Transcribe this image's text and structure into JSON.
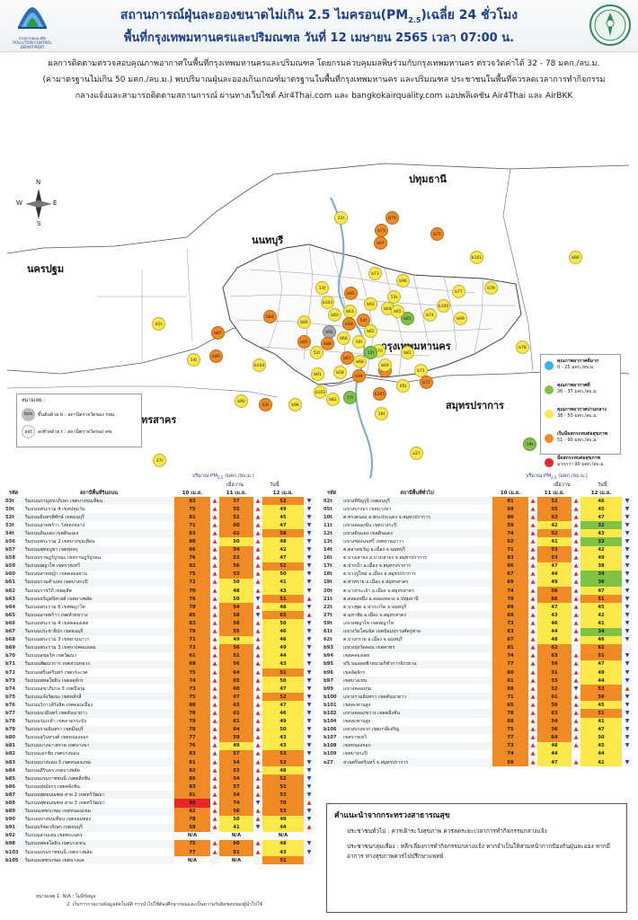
{
  "header": {
    "org_logo_caption": "กรมควบคุมมลพิษ",
    "org_logo_caption_en": "POLLUTION CONTROL DEPARTMENT",
    "title_pre": "สถานการณ์ฝุ่นละอองขนาดไม่เกิน 2.5 ไมครอน(PM",
    "title_sub": "2.5",
    "title_post": ")เฉลี่ย 24 ชั่วโมง",
    "subtitle": "พื้นที่กรุงเทพมหานครและปริมณฑล วันที่ 12 เมษายน 2565 เวลา 07:00 น."
  },
  "intro": {
    "line1": "ผลการติดตามตรวจสอบคุณภาพอากาศในพื้นที่กรุงเทพมหานครและปริมณฑล โดยกรมควบคุมมลพิษร่วมกับกรุงเทพมหานคร ตรวจวัดค่าได้ 32 - 78 มคก./ลบ.ม.",
    "line2": "(ค่ามาตรฐานไม่เกิน 50 มคก./ลบ.ม.) พบปริมาณฝุ่นละอองเกินเกณฑ์มาตรฐานในพื้นที่กรุงเทพมหานคร และปริมณฑล ประชาชนในพื้นที่ควรลดเวลาการทำกิจกรรม",
    "line3": "กลางแจ้งและสามารถติดตามสถานการณ์ ผ่านทางเว็บไซต์ Air4Thai.com และ bangkokairquality.com แอปพลิเคชัน Air4Thai และ AirBKK"
  },
  "map": {
    "compass": {
      "n": "N",
      "e": "E",
      "s": "S",
      "w": "W"
    },
    "provinces": [
      {
        "key": "pathum",
        "label": "ปทุมธานี"
      },
      {
        "key": "nonthaburi",
        "label": "นนทบุรี"
      },
      {
        "key": "nakhonpathom",
        "label": "นครปฐม"
      },
      {
        "key": "bangkok",
        "label": "กรุงเทพมหานคร"
      },
      {
        "key": "samutsakhon",
        "label": "สมุทรสาคร"
      },
      {
        "key": "samutprakan",
        "label": "สมุทรปราการ"
      }
    ],
    "stations": [
      {
        "id": "22t",
        "c": "y"
      },
      {
        "id": "b76",
        "c": "o"
      },
      {
        "id": "b73",
        "c": "o"
      },
      {
        "id": "b97",
        "c": "o"
      },
      {
        "id": "b75",
        "c": "o"
      },
      {
        "id": "b101",
        "c": "y"
      },
      {
        "id": "b80",
        "c": "y"
      },
      {
        "id": "b73",
        "c": "y"
      },
      {
        "id": "b96",
        "c": "y"
      },
      {
        "id": "13t",
        "c": "y"
      },
      {
        "id": "b95",
        "c": "o"
      },
      {
        "id": "53t",
        "c": "y"
      },
      {
        "id": "b77",
        "c": "y"
      },
      {
        "id": "b79",
        "c": "y"
      },
      {
        "id": "b84",
        "c": "o"
      },
      {
        "id": "b103",
        "c": "y"
      },
      {
        "id": "b93",
        "c": "y"
      },
      {
        "id": "b63",
        "c": "y"
      },
      {
        "id": "b64",
        "c": "y"
      },
      {
        "id": "b100",
        "c": "y"
      },
      {
        "id": "b61",
        "c": "g"
      },
      {
        "id": "b65",
        "c": "y"
      },
      {
        "id": "81t",
        "c": "y"
      },
      {
        "id": "b87",
        "c": "o"
      },
      {
        "id": "b60",
        "c": "y"
      },
      {
        "id": "b59",
        "c": "o"
      },
      {
        "id": "54t",
        "c": "o"
      },
      {
        "id": "b99",
        "c": "y"
      },
      {
        "id": "b86",
        "c": "y"
      },
      {
        "id": "b92",
        "c": "x"
      },
      {
        "id": "b62",
        "c": "y"
      },
      {
        "id": "b66",
        "c": "y"
      },
      {
        "id": "50t",
        "c": "y"
      },
      {
        "id": "b74",
        "c": "y"
      },
      {
        "id": "b78",
        "c": "y"
      },
      {
        "id": "b89",
        "c": "o"
      },
      {
        "id": "14t",
        "c": "y"
      },
      {
        "id": "b85",
        "c": "o"
      },
      {
        "id": "b88",
        "c": "o"
      },
      {
        "id": "52t",
        "c": "y"
      },
      {
        "id": "b67",
        "c": "o"
      },
      {
        "id": "b68",
        "c": "y"
      },
      {
        "id": "b70",
        "c": "y"
      },
      {
        "id": "12t",
        "c": "g"
      },
      {
        "id": "b81",
        "c": "y"
      },
      {
        "id": "b104",
        "c": "y"
      },
      {
        "id": "b83",
        "c": "o"
      },
      {
        "id": "b69",
        "c": "y"
      },
      {
        "id": "b58",
        "c": "y"
      },
      {
        "id": "b91",
        "c": "y"
      },
      {
        "id": "b94",
        "c": "o"
      },
      {
        "id": "b71",
        "c": "y"
      },
      {
        "id": "b72",
        "c": "o"
      },
      {
        "id": "05t",
        "c": "y"
      },
      {
        "id": "b102",
        "c": "y"
      },
      {
        "id": "b105",
        "c": "o"
      },
      {
        "id": "b82",
        "c": "y"
      },
      {
        "id": "17t",
        "c": "g"
      },
      {
        "id": "b90",
        "c": "y"
      },
      {
        "id": "03t",
        "c": "o"
      },
      {
        "id": "b98",
        "c": "y"
      },
      {
        "id": "16t",
        "c": "y"
      },
      {
        "id": "27t",
        "c": "y"
      },
      {
        "id": "19t",
        "c": "g"
      },
      {
        "id": "o27",
        "c": "y"
      }
    ],
    "legend": [
      {
        "title": "คุณภาพอากาศดีมาก",
        "range": "0 - 25 มคก./ลบ.ม.",
        "color": "#34b4ee"
      },
      {
        "title": "คุณภาพอากาศดี",
        "range": "26 - 37 มคก./ลบ.ม.",
        "color": "#80c243"
      },
      {
        "title": "คุณภาพอากาศปานกลาง",
        "range": "38 - 50 มคก./ลบ.ม.",
        "color": "#fde84a"
      },
      {
        "title": "เริ่มมีผลกระทบต่อสุขภาพ",
        "range": "51 - 90 มคก./ลบ.ม.",
        "color": "#f08a24"
      },
      {
        "title": "มีผลกระทบต่อสุขภาพ",
        "range": "มากกว่า 90 มคก./ลบ.ม.",
        "color": "#e8262a"
      }
    ],
    "note": {
      "title": "หมายเหตุ :",
      "row1_code": "bxx",
      "row1_text": "ขึ้นต้นด้วย b : สถานีตรวจวัดของ กทม.",
      "row2_code": "xxt",
      "row2_text": "ลงท้ายด้วย t : สถานีตรวจวัดของ คพ."
    }
  },
  "table_head": {
    "unit": "ปริมาณ PM",
    "unit_sub": "2.5",
    "unit_post": " (มคก./ลบ.ม.)",
    "yesterday": "เมื่อวาน",
    "today": "วันนี้",
    "code": "รหัส",
    "station_left": "สถานีพื้นที่ริมถนน",
    "station_right": "สถานีพื้นที่ทั่วไป",
    "d1": "10 เม.ย.",
    "d2": "11 เม.ย.",
    "d3": "12 เม.ย."
  },
  "left_rows": [
    [
      "03t",
      "ริมถนนกาญจนาภิเษก เขตบางขุนเทียน",
      "83",
      "57",
      "52"
    ],
    [
      "50t",
      "ริมถนนพระราม 4 เขตปทุมวัน",
      "75",
      "55",
      "49"
    ],
    [
      "52t",
      "ริมถนนอินทรพิทักษ์ เขตธนบุรี",
      "81",
      "52",
      "45"
    ],
    [
      "53t",
      "ริมถนนลาดพร้าว วังทองหลาง",
      "71",
      "60",
      "47"
    ],
    [
      "54t",
      "ริมถนนดินแดง เขตดินแดง",
      "83",
      "62",
      "58"
    ],
    [
      "b56",
      "ริมถนนพระราม 2 เขตบางขุนเทียน",
      "80",
      "50",
      "48"
    ],
    [
      "b57",
      "ริมถนนพุทธบูชา เขตทุ่งครุ",
      "66",
      "54",
      "42"
    ],
    [
      "b58",
      "ริมถนนราษฎร์บูรณะ เขตราษฎร์บูรณะ",
      "76",
      "53",
      "47"
    ],
    [
      "b59",
      "ริมถนนพญาไท เขตราชเทวี",
      "82",
      "56",
      "52"
    ],
    [
      "b60",
      "ริมถนนลาดหญ้า เขตคลองสาน",
      "75",
      "53",
      "50"
    ],
    [
      "b61",
      "ริมถนนรามคำแหง เขตบางกะปิ",
      "72",
      "50",
      "41"
    ],
    [
      "b62",
      "ริมถนนราชวิถี เขตดุสิต",
      "70",
      "48",
      "43"
    ],
    [
      "b63",
      "ริมถนนจรัญสนิทวงศ์ เขตบางพลัด",
      "76",
      "50",
      "51"
    ],
    [
      "b64",
      "ริมถนนพระราม 6 เขตพญาไท",
      "79",
      "54",
      "48"
    ],
    [
      "b65",
      "ริมถนนลาดพร้าว เขตห้วยขวาง",
      "85",
      "58",
      "65"
    ],
    [
      "b66",
      "ริมถนนพระราม 4 เขตคลองเตย",
      "83",
      "58",
      "50"
    ],
    [
      "b67",
      "ริมถนนประชาธิปก เขตธนบุรี",
      "79",
      "55",
      "46"
    ],
    [
      "b68",
      "ริมถนนพระราม 3 เขตยานนาวา",
      "71",
      "49",
      "46"
    ],
    [
      "b69",
      "ริมถนนพระราม 3 เขตบางคอแหลม",
      "73",
      "56",
      "49"
    ],
    [
      "b70",
      "ริมถนนสุขุมวิท เขตวัฒนา",
      "61",
      "51",
      "44"
    ],
    [
      "b71",
      "ริมถนนพัฒนาการ เขตสวนหลวง",
      "68",
      "56",
      "43"
    ],
    [
      "b72",
      "ริมถนนศรีนครินทร์ เขตประเวศ",
      "75",
      "64",
      "51"
    ],
    [
      "b73",
      "ริมถนนพหลโยธิน เขตจตุจักร",
      "74",
      "65",
      "50"
    ],
    [
      "b74",
      "ริมถนนสุขาภิบาล 3 เขตบึงกุ่ม",
      "73",
      "60",
      "47"
    ],
    [
      "b75",
      "ริมถนนแจ้งวัฒนะ เขตหลักสี่",
      "75",
      "67",
      "52"
    ],
    [
      "b76",
      "ริมถนนวิภาวดีรังสิต เขตดอนเมือง",
      "80",
      "63",
      "47"
    ],
    [
      "b77",
      "ริมถนนนวมินทร์ เขตคันนายาว",
      "78",
      "62",
      "46"
    ],
    [
      "b78",
      "ริมถนนร่มเกล้า เขตลาดกระบัง",
      "79",
      "61",
      "49"
    ],
    [
      "b79",
      "ริมถนนรามอินทรา เขตมีนบุรี",
      "78",
      "64",
      "50"
    ],
    [
      "b80",
      "ริมถนนสุวินทวงศ์ เขตหนองจอก",
      "77",
      "59",
      "43"
    ],
    [
      "b81",
      "ริมถนนบางนา-ตราด เขตบางนา",
      "76",
      "49",
      "43"
    ],
    [
      "b82",
      "ริมถนนเอกชัย เขตบางบอน",
      "83",
      "57",
      "53"
    ],
    [
      "b83",
      "ริมถนนบางบอน 3 เขตหนองแขม",
      "81",
      "54",
      "53"
    ],
    [
      "b84",
      "ริมถนนสิรินธร เขตบางพลัด",
      "82",
      "53",
      "48"
    ],
    [
      "b85",
      "ริมถนนบรมราชชนนี เขตตลิ่งชัน",
      "86",
      "54",
      "52"
    ],
    [
      "b86",
      "ริมถนนทุ่งมังกร เขตตลิ่งชัน",
      "83",
      "57",
      "51"
    ],
    [
      "b87",
      "ริมถนนพุทธมณฑล สาย 2 เขตทวีวัฒนา",
      "81",
      "54",
      "53"
    ],
    [
      "b88",
      "ริมถนนพุทธมณฑล สาย 3 เขตทวีวัฒนา",
      "99",
      "74",
      "78"
    ],
    [
      "b89",
      "ริมถนนเพชรเกษม เขตหนองแขม",
      "82",
      "56",
      "53"
    ],
    [
      "b90",
      "ริมถนนบางขุนเทียน เขตจอมทอง",
      "78",
      "50",
      "49"
    ],
    [
      "b91",
      "ริมถนนรัชดาภิเษก เขตธนบุรี",
      "59",
      "41",
      "44"
    ],
    [
      "b92",
      "ริมถนนสามเสน เขตพระนคร",
      "N/A",
      "N/A",
      "N/A"
    ],
    [
      "b98",
      "ริมถนนพหลโยธิน เขตบางเขน",
      "75",
      "60",
      "48"
    ],
    [
      "b103",
      "ริมถนนบรมราชชนนี เขตบางพลัด",
      "77",
      "51",
      "43"
    ],
    [
      "b105",
      "ริมถนนเพชรเกษม เขตบางแค",
      "N/A",
      "N/A",
      "51"
    ]
  ],
  "right_rows": [
    [
      "02t",
      "แขวงหิรัญรูจี เขตธนบุรี",
      "81",
      "52",
      "46"
    ],
    [
      "05t",
      "แขวงบางนา เขตบางนา",
      "69",
      "55",
      "45"
    ],
    [
      "10t",
      "ต.ทรงคนอง อ.พระประแดง จ.สมุทรปราการ",
      "80",
      "53",
      "47"
    ],
    [
      "11t",
      "แขวงคลองจั่น เขตบางกะปิ",
      "59",
      "42",
      "32"
    ],
    [
      "12t",
      "แขวงดินแดง เขตดินแดง",
      "74",
      "52",
      "43"
    ],
    [
      "13t",
      "แขวงช่องนนทรี เขตยานนาวา",
      "62",
      "41",
      "33"
    ],
    [
      "14t",
      "ต.ตลาดขวัญ อ.เมือง จ.นนทบุรี",
      "71",
      "53",
      "42"
    ],
    [
      "16t",
      "ต.บางเสาธง อ.บางเสาธง จ.สมุทรปราการ",
      "83",
      "53",
      "49"
    ],
    [
      "17t",
      "ต.ปากน้ำ อ.เมือง จ.สมุทรปราการ",
      "66",
      "47",
      "38"
    ],
    [
      "18t",
      "ต.บางปูใหม่ อ.เมือง จ.สมุทรปราการ",
      "67",
      "44",
      "34"
    ],
    [
      "19t",
      "ต.ท่าทราย อ.เมือง จ.สมุทรสาคร",
      "69",
      "49",
      "36"
    ],
    [
      "20t",
      "ต.บางกระเจ้า อ.เมือง จ.สมุทรสาคร",
      "74",
      "56",
      "47"
    ],
    [
      "21t",
      "ต.คลองหนึ่ง อ.คลองหลวง จ.ปทุมธานี",
      "79",
      "66",
      "51"
    ],
    [
      "22t",
      "ต.บางพูด อ.ปากเกร็ด จ.นนทบุรี",
      "69",
      "47",
      "45"
    ],
    [
      "27t",
      "ต.มหาชัย อ.เมือง จ.สมุทรสาคร",
      "69",
      "43",
      "42"
    ],
    [
      "59t",
      "แขวงพญาไท เขตพญาไท",
      "73",
      "46",
      "41"
    ],
    [
      "61t",
      "แขวงวัดโสมนัส เขตป้อมปราบศัตรูพ่าย",
      "63",
      "44",
      "34"
    ],
    [
      "62t",
      "ต.บางกรวย อ.เมือง จ.นนทบุรี",
      "67",
      "48",
      "46"
    ],
    [
      "b93",
      "แขวงทุ่งวัดดอน เขตสาทร",
      "81",
      "62",
      "62"
    ],
    [
      "b94",
      "เขตคลองเตย",
      "74",
      "63",
      "51"
    ],
    [
      "b95",
      "บริเวณลอยฟ้าสนามกีฬาการจักรยาน",
      "77",
      "59",
      "47"
    ],
    [
      "b96",
      "เขตจัตุจักร",
      "60",
      "51",
      "49"
    ],
    [
      "b97",
      "เขตบางเขน",
      "61",
      "53",
      "44"
    ],
    [
      "b99",
      "แขวงคลองกุ่ม",
      "69",
      "52",
      "53"
    ],
    [
      "b100",
      "แขวงรามอินทรา เขตคันนายาว",
      "71",
      "61",
      "56"
    ],
    [
      "b101",
      "เขตสะพานสูง",
      "65",
      "59",
      "45"
    ],
    [
      "b102",
      "แขวงคลองขวาง เขตตลิ่งชัน",
      "78",
      "63",
      "51"
    ],
    [
      "b104",
      "เขตสะพานสูง",
      "69",
      "54",
      "41"
    ],
    [
      "b106",
      "แขวงบางจาก เขตภาษีเจริญ",
      "75",
      "56",
      "47"
    ],
    [
      "b107",
      "เขตราชเทวี",
      "77",
      "64",
      "50"
    ],
    [
      "b108",
      "เขตหนองจอก",
      "73",
      "48",
      "45"
    ],
    [
      "b109",
      "เขตบางกะปิ",
      "74",
      "44",
      "44"
    ],
    [
      "o27",
      "สวนศรีนครินทร์ จ.สมุทรปราการ",
      "59",
      "47",
      "41"
    ]
  ],
  "advice": {
    "title": "คำแนะนำจากกระทรวงสาธารณสุข",
    "p1": "ประชาชนทั่วไป : ควรเฝ้าระวังสุขภาพ ควรลดระยะเวลาการทำกิจกรรมกลางแจ้ง",
    "p2": "ประชาชนกลุ่มเสี่ยง : หลีกเลี่ยงการทำกิจกรรมกลางแจ้ง หากจำเป็นให้สวมหน้ากากป้องกันฝุ่นละออง หากมีอาการ ทางสุขภาพควรไปปรึกษาแพทย์"
  },
  "footnote": {
    "line1": "หมายเหตุ 1. N/A : ไม่มีข้อมูล",
    "line2": "2. เว็บการรายงานข้อมูลอัตโนมัติ การนำไปใช้ต้องศึกษาก่อนและเป็นความรับผิดชอบของผู้นำไปใช้"
  },
  "colors": {
    "title": "#1b3f8f",
    "good": "#80c243",
    "moderate": "#fde84a",
    "unhealthy_sensitive": "#f08a24",
    "unhealthy": "#e8262a",
    "very_good": "#34b4ee",
    "arrow_up": "#e02020",
    "arrow_down": "#1d3fb0"
  }
}
